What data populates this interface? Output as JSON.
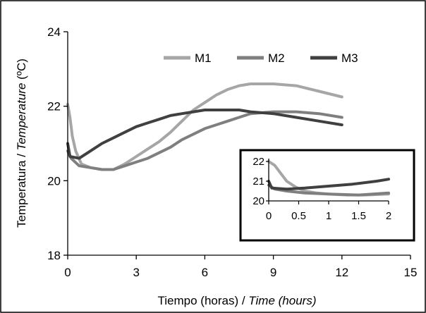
{
  "chart_data": [
    {
      "type": "line",
      "xlabel": "Tiempo (horas) / ",
      "xlabel_italic": "Time (hours)",
      "ylabel": "Temperatura / ",
      "ylabel_italic": "Temperature",
      "ylabel_suffix": " (ºC)",
      "xlim": [
        0,
        15
      ],
      "ylim": [
        18,
        24
      ],
      "xticks": [
        "0",
        "3",
        "6",
        "9",
        "12",
        "15"
      ],
      "yticks": [
        "18",
        "20",
        "22",
        "24"
      ],
      "legend_position": "top-right",
      "series": [
        {
          "name": "M1",
          "color": "#a6a6a6",
          "x": [
            0,
            0.1,
            0.2,
            0.35,
            0.6,
            1.0,
            1.5,
            2.0,
            2.5,
            3.0,
            3.5,
            4.0,
            4.5,
            5.0,
            5.5,
            6.0,
            6.5,
            7.0,
            7.5,
            8.0,
            9.0,
            10.0,
            11.0,
            12.0
          ],
          "y": [
            22.05,
            21.7,
            21.2,
            20.8,
            20.45,
            20.35,
            20.3,
            20.3,
            20.45,
            20.65,
            20.85,
            21.05,
            21.3,
            21.6,
            21.9,
            22.1,
            22.3,
            22.45,
            22.55,
            22.6,
            22.6,
            22.55,
            22.4,
            22.25
          ]
        },
        {
          "name": "M2",
          "color": "#7f7f7f",
          "x": [
            0,
            0.15,
            0.5,
            1.0,
            1.5,
            2.0,
            2.5,
            3.0,
            3.5,
            4.0,
            4.5,
            5.0,
            5.5,
            6.0,
            6.5,
            7.0,
            7.5,
            8.0,
            9.0,
            10.0,
            11.0,
            12.0
          ],
          "y": [
            20.8,
            20.6,
            20.4,
            20.35,
            20.3,
            20.3,
            20.4,
            20.5,
            20.6,
            20.75,
            20.9,
            21.1,
            21.25,
            21.4,
            21.5,
            21.6,
            21.7,
            21.8,
            21.85,
            21.85,
            21.8,
            21.7
          ]
        },
        {
          "name": "M3",
          "color": "#404040",
          "x": [
            0,
            0.1,
            0.5,
            1.0,
            1.5,
            2.0,
            2.5,
            3.0,
            3.5,
            4.0,
            4.5,
            5.0,
            5.5,
            6.0,
            6.5,
            7.0,
            7.5,
            8.0,
            9.0,
            10.0,
            11.0,
            12.0
          ],
          "y": [
            21.0,
            20.65,
            20.6,
            20.8,
            21.0,
            21.15,
            21.3,
            21.45,
            21.55,
            21.65,
            21.75,
            21.8,
            21.85,
            21.9,
            21.9,
            21.9,
            21.9,
            21.85,
            21.8,
            21.7,
            21.6,
            21.5
          ]
        }
      ]
    },
    {
      "type": "line",
      "xlim": [
        0,
        2
      ],
      "ylim": [
        20,
        22
      ],
      "xticks": [
        "0",
        "0.5",
        "1",
        "1.5",
        "2"
      ],
      "yticks": [
        "20",
        "21",
        "22"
      ],
      "series": [
        {
          "name": "M1",
          "color": "#a6a6a6",
          "x": [
            0,
            0.1,
            0.2,
            0.3,
            0.45,
            0.6,
            0.8,
            1.0,
            1.3,
            1.6,
            2.0
          ],
          "y": [
            22.0,
            21.8,
            21.4,
            21.0,
            20.7,
            20.5,
            20.4,
            20.35,
            20.3,
            20.3,
            20.35
          ]
        },
        {
          "name": "M2",
          "color": "#7f7f7f",
          "x": [
            0,
            0.1,
            0.3,
            0.6,
            1.0,
            1.5,
            2.0
          ],
          "y": [
            20.8,
            20.6,
            20.5,
            20.4,
            20.35,
            20.3,
            20.4
          ]
        },
        {
          "name": "M3",
          "color": "#404040",
          "x": [
            0,
            0.05,
            0.3,
            0.6,
            1.0,
            1.4,
            1.8,
            2.0
          ],
          "y": [
            21.0,
            20.65,
            20.6,
            20.65,
            20.75,
            20.85,
            21.0,
            21.1
          ]
        }
      ]
    }
  ]
}
